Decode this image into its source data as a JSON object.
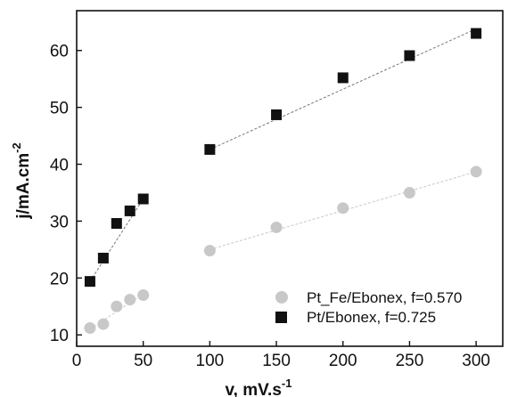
{
  "chart_data": {
    "type": "scatter",
    "xlabel_main": "v, mV.s",
    "xlabel_sup": "-1",
    "ylabel_main": "j/mA.cm",
    "ylabel_sup": "-2",
    "xlim": [
      0,
      320
    ],
    "ylim": [
      8,
      67
    ],
    "x_ticks": [
      0,
      50,
      100,
      150,
      200,
      250,
      300
    ],
    "y_ticks": [
      10,
      20,
      30,
      40,
      50,
      60
    ],
    "grid": false,
    "legend_position": "bottom-right",
    "series": [
      {
        "name": "Pt_Fe/Ebonex, f=0.570",
        "marker": "circle",
        "color": "#c8c8c8",
        "x": [
          10,
          20,
          30,
          40,
          50,
          100,
          150,
          200,
          250,
          300
        ],
        "y": [
          11.2,
          11.9,
          15.0,
          16.2,
          17.0,
          24.8,
          28.9,
          32.3,
          35.0,
          38.7
        ],
        "fit_segments": [
          {
            "x": [
              10,
              50
            ],
            "y": [
              11.0,
              17.2
            ]
          },
          {
            "x": [
              100,
              300
            ],
            "y": [
              25.0,
              38.7
            ]
          }
        ]
      },
      {
        "name": "Pt/Ebonex, f=0.725",
        "marker": "square",
        "color": "#111111",
        "x": [
          10,
          20,
          30,
          40,
          50,
          100,
          150,
          200,
          250,
          300
        ],
        "y": [
          19.4,
          23.5,
          29.6,
          31.8,
          33.9,
          42.6,
          48.7,
          55.2,
          59.1,
          63.0
        ],
        "fit_segments": [
          {
            "x": [
              10,
              50
            ],
            "y": [
              19.4,
              33.9
            ]
          },
          {
            "x": [
              100,
              300
            ],
            "y": [
              42.6,
              63.8
            ]
          }
        ]
      }
    ]
  }
}
